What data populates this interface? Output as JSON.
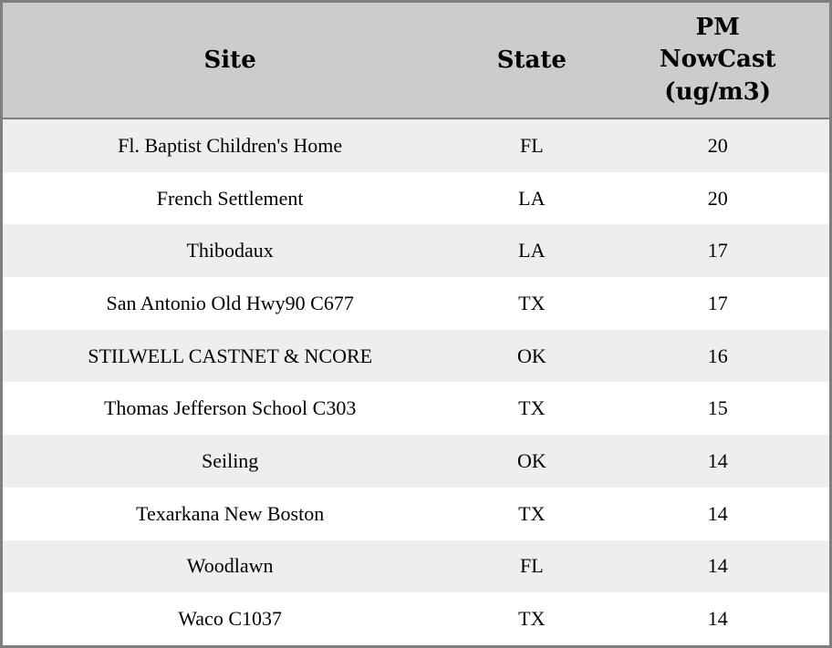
{
  "chart_data": {
    "type": "table",
    "columns": [
      "Site",
      "State",
      "PM NowCast (ug/m3)"
    ],
    "rows": [
      [
        "Fl. Baptist Children's Home",
        "FL",
        20
      ],
      [
        "French Settlement",
        "LA",
        20
      ],
      [
        "Thibodaux",
        "LA",
        17
      ],
      [
        "San Antonio Old Hwy90 C677",
        "TX",
        17
      ],
      [
        "STILWELL CASTNET & NCORE",
        "OK",
        16
      ],
      [
        "Thomas Jefferson School C303",
        "TX",
        15
      ],
      [
        "Seiling",
        "OK",
        14
      ],
      [
        "Texarkana New Boston",
        "TX",
        14
      ],
      [
        "Woodlawn",
        "FL",
        14
      ],
      [
        "Waco C1037",
        "TX",
        14
      ]
    ],
    "layout": {
      "header_lines_pm_column": [
        "PM",
        "NowCast",
        "(ug/m3)"
      ],
      "row_striping": "alternating, first data row shaded",
      "alignment": "all cells centered"
    }
  },
  "colors": {
    "header_bg": "#cccccc",
    "row_stripe_bg": "#eeeeee",
    "row_bg": "#ffffff",
    "border": "#7f7f7f",
    "text": "#000000"
  }
}
